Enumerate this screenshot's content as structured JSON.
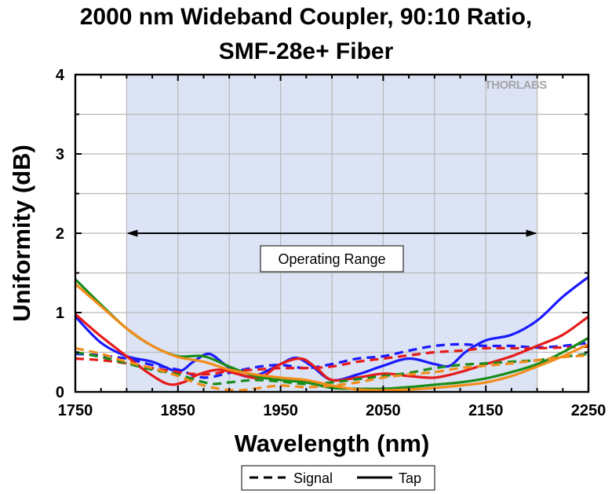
{
  "chart_data": {
    "type": "line",
    "title_line1": "2000 nm Wideband Coupler, 90:10 Ratio,",
    "title_line2": "SMF-28e+ Fiber",
    "xlabel": "Wavelength (nm)",
    "ylabel": "Uniformity (dB)",
    "xlim": [
      1750,
      2250
    ],
    "ylim": [
      0,
      4
    ],
    "x_ticks": [
      1750,
      1850,
      1950,
      2050,
      2150,
      2250
    ],
    "y_ticks": [
      0,
      1,
      2,
      3,
      4
    ],
    "grid": true,
    "operating_range": {
      "start": 1800,
      "end": 2200,
      "label": "Operating Range",
      "arrow_y": 2.0
    },
    "watermark": "THORLABS",
    "legend": {
      "placement": "bottom-center",
      "entries": [
        {
          "label": "Signal",
          "style": "dashed"
        },
        {
          "label": "Tap",
          "style": "solid"
        }
      ]
    },
    "series": [
      {
        "color": "#1a1aff",
        "style": "solid",
        "x": [
          1750,
          1775,
          1800,
          1825,
          1850,
          1865,
          1880,
          1895,
          1910,
          1925,
          1950,
          1965,
          1980,
          2000,
          2025,
          2050,
          2075,
          2100,
          2115,
          2130,
          2150,
          2175,
          2200,
          2225,
          2250
        ],
        "y": [
          0.95,
          0.62,
          0.45,
          0.38,
          0.26,
          0.38,
          0.48,
          0.35,
          0.22,
          0.2,
          0.35,
          0.43,
          0.33,
          0.15,
          0.22,
          0.33,
          0.42,
          0.35,
          0.33,
          0.5,
          0.65,
          0.72,
          0.9,
          1.2,
          1.45
        ]
      },
      {
        "color": "#1a1aff",
        "style": "dashed",
        "x": [
          1750,
          1775,
          1800,
          1825,
          1850,
          1875,
          1900,
          1925,
          1950,
          1975,
          2000,
          2025,
          2050,
          2075,
          2100,
          2125,
          2150,
          2175,
          2200,
          2225,
          2250
        ],
        "y": [
          0.48,
          0.46,
          0.42,
          0.34,
          0.28,
          0.18,
          0.24,
          0.31,
          0.34,
          0.3,
          0.35,
          0.42,
          0.45,
          0.52,
          0.58,
          0.6,
          0.58,
          0.58,
          0.56,
          0.58,
          0.62
        ]
      },
      {
        "color": "#e61a1a",
        "style": "solid",
        "x": [
          1750,
          1775,
          1800,
          1820,
          1840,
          1855,
          1870,
          1890,
          1910,
          1930,
          1950,
          1970,
          1985,
          2000,
          2025,
          2050,
          2075,
          2100,
          2125,
          2150,
          2175,
          2200,
          2225,
          2250
        ],
        "y": [
          0.98,
          0.7,
          0.45,
          0.25,
          0.1,
          0.12,
          0.22,
          0.28,
          0.22,
          0.18,
          0.35,
          0.42,
          0.3,
          0.15,
          0.18,
          0.23,
          0.2,
          0.18,
          0.25,
          0.35,
          0.45,
          0.58,
          0.72,
          0.95
        ]
      },
      {
        "color": "#e61a1a",
        "style": "dashed",
        "x": [
          1750,
          1775,
          1800,
          1825,
          1850,
          1875,
          1900,
          1925,
          1950,
          1975,
          2000,
          2025,
          2050,
          2075,
          2100,
          2125,
          2150,
          2175,
          2200,
          2225,
          2250
        ],
        "y": [
          0.42,
          0.4,
          0.36,
          0.3,
          0.25,
          0.22,
          0.26,
          0.28,
          0.3,
          0.3,
          0.32,
          0.38,
          0.42,
          0.46,
          0.5,
          0.52,
          0.55,
          0.55,
          0.55,
          0.56,
          0.57
        ]
      },
      {
        "color": "#1a8c1a",
        "style": "solid",
        "x": [
          1750,
          1775,
          1800,
          1825,
          1850,
          1875,
          1900,
          1925,
          1950,
          1975,
          2000,
          2025,
          2050,
          2075,
          2100,
          2125,
          2150,
          2175,
          2200,
          2225,
          2250
        ],
        "y": [
          1.42,
          1.1,
          0.8,
          0.58,
          0.45,
          0.45,
          0.32,
          0.2,
          0.15,
          0.12,
          0.05,
          0.04,
          0.04,
          0.06,
          0.09,
          0.12,
          0.17,
          0.25,
          0.35,
          0.5,
          0.68
        ]
      },
      {
        "color": "#1a8c1a",
        "style": "dashed",
        "x": [
          1750,
          1775,
          1800,
          1825,
          1850,
          1870,
          1885,
          1900,
          1925,
          1950,
          1975,
          2000,
          2025,
          2050,
          2075,
          2100,
          2125,
          2150,
          2175,
          2200,
          2225,
          2250
        ],
        "y": [
          0.5,
          0.44,
          0.36,
          0.28,
          0.22,
          0.14,
          0.1,
          0.12,
          0.15,
          0.13,
          0.1,
          0.12,
          0.16,
          0.2,
          0.24,
          0.3,
          0.34,
          0.36,
          0.38,
          0.4,
          0.44,
          0.48
        ]
      },
      {
        "color": "#f28c1a",
        "style": "solid",
        "x": [
          1750,
          1775,
          1800,
          1825,
          1850,
          1875,
          1900,
          1925,
          1950,
          1975,
          2000,
          2025,
          2050,
          2075,
          2100,
          2125,
          2150,
          2175,
          2200,
          2225,
          2250
        ],
        "y": [
          1.36,
          1.08,
          0.8,
          0.58,
          0.44,
          0.38,
          0.28,
          0.22,
          0.18,
          0.15,
          0.08,
          0.03,
          0.02,
          0.03,
          0.05,
          0.08,
          0.12,
          0.2,
          0.32,
          0.45,
          0.6
        ]
      },
      {
        "color": "#f28c1a",
        "style": "dashed",
        "x": [
          1750,
          1775,
          1800,
          1825,
          1850,
          1870,
          1890,
          1910,
          1930,
          1950,
          1975,
          2000,
          2025,
          2050,
          2075,
          2100,
          2125,
          2150,
          2175,
          2200,
          2225,
          2250
        ],
        "y": [
          0.55,
          0.48,
          0.38,
          0.3,
          0.2,
          0.1,
          0.04,
          0.02,
          0.05,
          0.08,
          0.06,
          0.08,
          0.12,
          0.18,
          0.22,
          0.25,
          0.3,
          0.33,
          0.36,
          0.4,
          0.44,
          0.46
        ]
      }
    ]
  }
}
